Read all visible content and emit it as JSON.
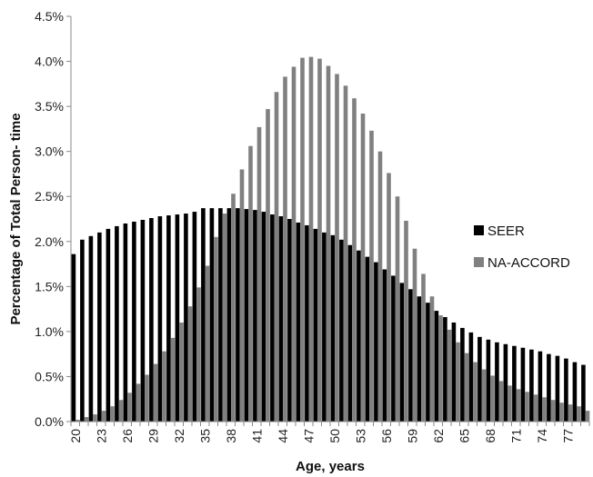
{
  "chart_data": {
    "type": "bar",
    "xlabel": "Age, years",
    "ylabel": "Percentage of Total Person- time",
    "ylim": [
      0,
      4.5
    ],
    "ytick_step": 0.5,
    "ytick_suffix": "%",
    "grid": false,
    "legend_position": "right",
    "x": [
      20,
      21,
      22,
      23,
      24,
      25,
      26,
      27,
      28,
      29,
      30,
      31,
      32,
      33,
      34,
      35,
      36,
      37,
      38,
      39,
      40,
      41,
      42,
      43,
      44,
      45,
      46,
      47,
      48,
      49,
      50,
      51,
      52,
      53,
      54,
      55,
      56,
      57,
      58,
      59,
      60,
      61,
      62,
      63,
      64,
      65,
      66,
      67,
      68,
      69,
      70,
      71,
      72,
      73,
      74,
      75,
      76,
      77,
      78,
      79
    ],
    "x_tick_labels": [
      "20",
      "23",
      "26",
      "29",
      "32",
      "35",
      "38",
      "41",
      "44",
      "47",
      "50",
      "53",
      "56",
      "59",
      "62",
      "65",
      "68",
      "71",
      "74",
      "77"
    ],
    "series": [
      {
        "name": "SEER",
        "color": "#000000",
        "values": [
          1.86,
          2.02,
          2.06,
          2.1,
          2.14,
          2.17,
          2.2,
          2.22,
          2.24,
          2.26,
          2.28,
          2.29,
          2.3,
          2.31,
          2.33,
          2.37,
          2.37,
          2.37,
          2.37,
          2.37,
          2.36,
          2.35,
          2.33,
          2.3,
          2.28,
          2.25,
          2.21,
          2.18,
          2.14,
          2.1,
          2.07,
          2.02,
          1.96,
          1.9,
          1.83,
          1.77,
          1.69,
          1.62,
          1.54,
          1.47,
          1.39,
          1.32,
          1.23,
          1.16,
          1.1,
          1.04,
          0.99,
          0.94,
          0.91,
          0.88,
          0.86,
          0.84,
          0.82,
          0.8,
          0.78,
          0.75,
          0.73,
          0.7,
          0.66,
          0.63
        ]
      },
      {
        "name": "NA-ACCORD",
        "color": "#808080",
        "values": [
          0.02,
          0.05,
          0.08,
          0.12,
          0.17,
          0.24,
          0.32,
          0.42,
          0.52,
          0.64,
          0.78,
          0.93,
          1.1,
          1.28,
          1.49,
          1.73,
          2.05,
          2.31,
          2.53,
          2.8,
          3.06,
          3.27,
          3.47,
          3.66,
          3.83,
          3.94,
          4.04,
          4.05,
          4.03,
          3.95,
          3.86,
          3.73,
          3.59,
          3.42,
          3.23,
          3.0,
          2.76,
          2.5,
          2.23,
          1.92,
          1.64,
          1.39,
          1.18,
          1.02,
          0.88,
          0.76,
          0.66,
          0.58,
          0.51,
          0.45,
          0.4,
          0.36,
          0.33,
          0.3,
          0.27,
          0.24,
          0.21,
          0.19,
          0.17,
          0.12
        ]
      }
    ]
  }
}
